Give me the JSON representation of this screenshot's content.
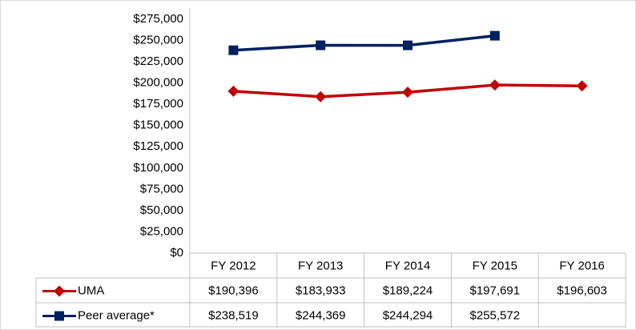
{
  "chart_data": {
    "type": "line",
    "categories": [
      "FY 2012",
      "FY 2013",
      "FY 2014",
      "FY 2015",
      "FY 2016"
    ],
    "series": [
      {
        "name": "UMA",
        "color": "#c00000",
        "marker": "diamond",
        "values": [
          190396,
          183933,
          189224,
          197691,
          196603
        ],
        "value_labels": [
          "$190,396",
          "$183,933",
          "$189,224",
          "$197,691",
          "$196,603"
        ]
      },
      {
        "name": "Peer average*",
        "color": "#002060",
        "marker": "square",
        "values": [
          238519,
          244369,
          244294,
          255572,
          null
        ],
        "value_labels": [
          "$238,519",
          "$244,369",
          "$244,294",
          "$255,572",
          null
        ]
      }
    ],
    "ylim": [
      0,
      275000
    ],
    "yticks": [
      {
        "value": 0,
        "label": "$0"
      },
      {
        "value": 25000,
        "label": "$25,000"
      },
      {
        "value": 50000,
        "label": "$50,000"
      },
      {
        "value": 75000,
        "label": "$75,000"
      },
      {
        "value": 100000,
        "label": "$100,000"
      },
      {
        "value": 125000,
        "label": "$125,000"
      },
      {
        "value": 150000,
        "label": "$150,000"
      },
      {
        "value": 175000,
        "label": "$175,000"
      },
      {
        "value": 200000,
        "label": "$200,000"
      },
      {
        "value": 225000,
        "label": "$225,000"
      },
      {
        "value": 250000,
        "label": "$250,000"
      },
      {
        "value": 275000,
        "label": "$275,000"
      }
    ],
    "grid": false,
    "data_table": true
  }
}
